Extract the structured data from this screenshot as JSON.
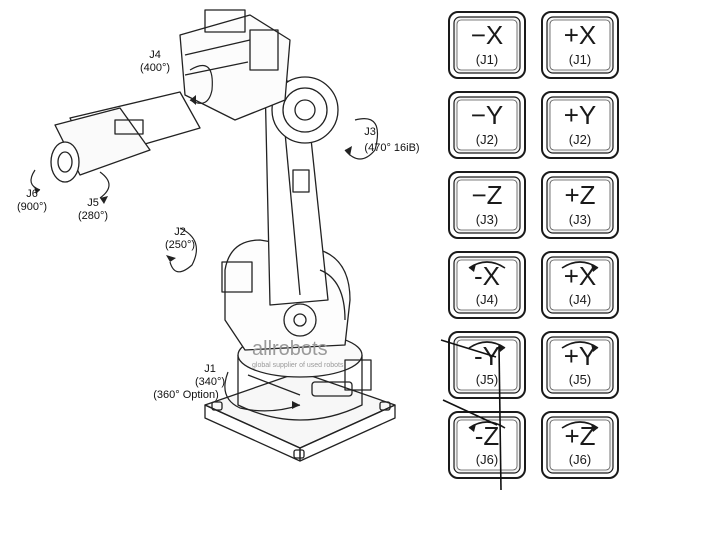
{
  "joints": [
    {
      "id": "J4",
      "range": "(400°)"
    },
    {
      "id": "J3",
      "range": "(470° 16iB)"
    },
    {
      "id": "J6",
      "range": "(900°)"
    },
    {
      "id": "J5",
      "range": "(280°)"
    },
    {
      "id": "J2",
      "range": "(250°)"
    },
    {
      "id": "J1",
      "range": "(340°)",
      "option": "(360° Option)"
    }
  ],
  "watermark": {
    "brand": "allrobots",
    "tagline": "global supplier of used robots"
  },
  "keys": [
    {
      "left": {
        "label": "−X",
        "joint": "(J1)"
      },
      "right": {
        "label": "+X",
        "joint": "(J1)"
      }
    },
    {
      "left": {
        "label": "−Y",
        "joint": "(J2)"
      },
      "right": {
        "label": "+Y",
        "joint": "(J2)"
      }
    },
    {
      "left": {
        "label": "−Z",
        "joint": "(J3)"
      },
      "right": {
        "label": "+Z",
        "joint": "(J3)"
      }
    },
    {
      "left": {
        "label": "-X",
        "joint": "(J4)"
      },
      "right": {
        "label": "+X",
        "joint": "(J4)"
      }
    },
    {
      "left": {
        "label": "-Y",
        "joint": "(J5)"
      },
      "right": {
        "label": "+Y",
        "joint": "(J5)"
      }
    },
    {
      "left": {
        "label": "-Z",
        "joint": "(J6)"
      },
      "right": {
        "label": "+Z",
        "joint": "(J6)"
      }
    }
  ]
}
